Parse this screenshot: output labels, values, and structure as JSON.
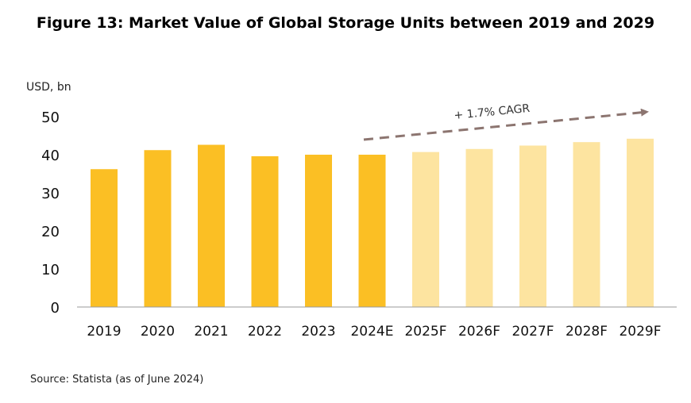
{
  "chart_data": {
    "type": "bar",
    "title": "Figure 13: Market Value of Global Storage Units between 2019 and 2029",
    "ylabel": "USD, bn",
    "xlabel": "",
    "categories": [
      "2019",
      "2020",
      "2021",
      "2022",
      "2023",
      "2024E",
      "2025F",
      "2026F",
      "2027F",
      "2028F",
      "2029F"
    ],
    "values": [
      36.2,
      41.2,
      42.6,
      39.6,
      40.0,
      40.0,
      40.7,
      41.5,
      42.4,
      43.3,
      44.2
    ],
    "forecast": [
      false,
      false,
      false,
      false,
      false,
      false,
      true,
      true,
      true,
      true,
      true
    ],
    "ylim": [
      0,
      50
    ],
    "yticks": [
      0,
      10,
      20,
      30,
      40,
      50
    ],
    "grid": false,
    "annotation": "+ 1.7% CAGR",
    "colors": {
      "actual": "#FBBF24",
      "forecast": "#FDE4A0",
      "arrow": "#8C7570",
      "axis": "#999999"
    }
  },
  "source": "Source: Statista (as of June 2024)"
}
